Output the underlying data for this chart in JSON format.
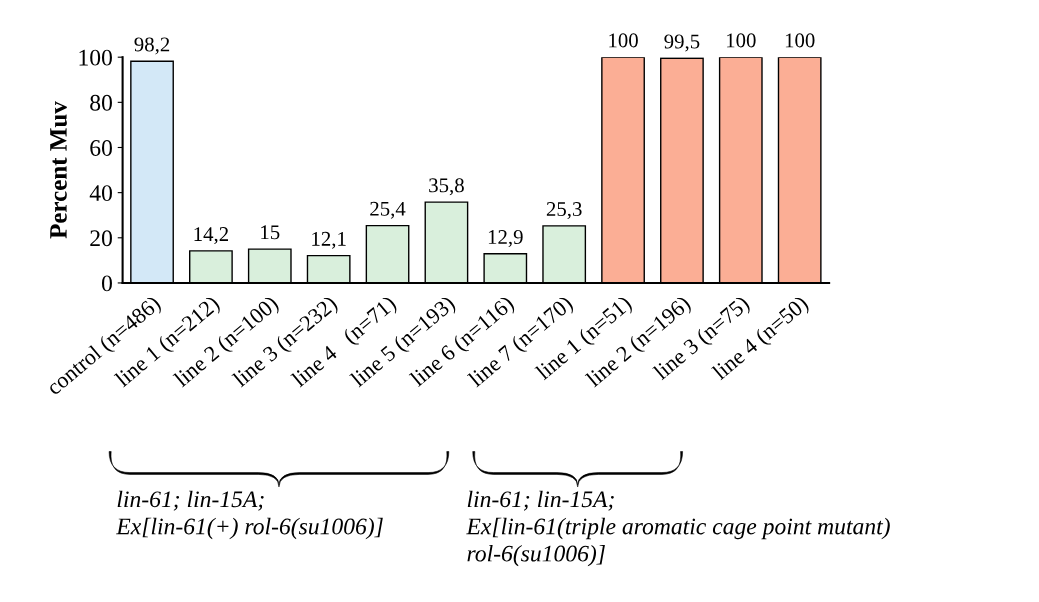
{
  "chart_data": {
    "type": "bar",
    "ylabel": "Percent Muv",
    "categories": [
      "control (n=486)",
      "line 1 (n=212)",
      "line 2 (n=100)",
      "line 3 (n=232)",
      "line 4   (n=71)",
      "line 5 (n=193)",
      "line 6 (n=116)",
      "line 7 (n=170)",
      "line 1 (n=51)",
      "line 2 (n=196)",
      "line 3 (n=75)",
      "line 4 (n=50)"
    ],
    "values": [
      98.2,
      14.2,
      15,
      12.1,
      25.4,
      35.8,
      12.9,
      25.3,
      100,
      99.5,
      100,
      100
    ],
    "value_labels": [
      "98,2",
      "14,2",
      "15",
      "12,1",
      "25,4",
      "35,8",
      "12,9",
      "25,3",
      "100",
      "99,5",
      "100",
      "100"
    ],
    "colors": [
      "#d3e8f7",
      "#d9efdc",
      "#d9efdc",
      "#d9efdc",
      "#d9efdc",
      "#d9efdc",
      "#d9efdc",
      "#d9efdc",
      "#fbae95",
      "#fbae95",
      "#fbae95",
      "#fbae95"
    ],
    "ylim": [
      0,
      100
    ],
    "yticks": [
      0,
      20,
      40,
      60,
      80,
      100
    ],
    "grid": false,
    "legend": false,
    "annotations": [
      "lin-61; lin-15A;\nEx[lin-61(+) rol-6(su1006)]",
      "lin-61; lin-15A;\nEx[lin-61(triple aromatic cage point mutant)\nrol-6(su1006)]"
    ]
  }
}
